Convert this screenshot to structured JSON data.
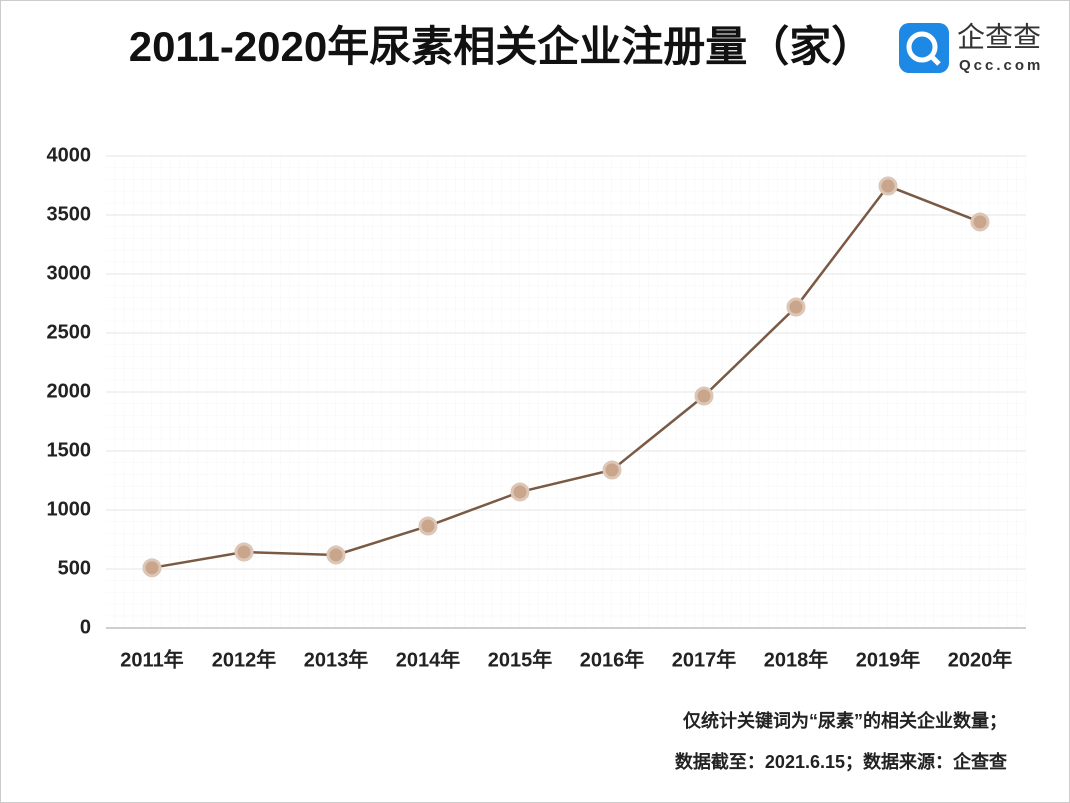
{
  "chart_data": {
    "type": "line",
    "title": "2011-2020年尿素相关企业注册量（家）",
    "categories": [
      "2011年",
      "2012年",
      "2013年",
      "2014年",
      "2015年",
      "2016年",
      "2017年",
      "2018年",
      "2019年",
      "2020年"
    ],
    "values": [
      510,
      644,
      619,
      864,
      1153,
      1339,
      1966,
      2720,
      3746,
      3441
    ],
    "color": "#7a5a44",
    "marker_color": "#c9a58c",
    "ylim": [
      0,
      4000
    ],
    "yticks": [
      0,
      500,
      1000,
      1500,
      2000,
      2500,
      3000,
      3500,
      4000
    ],
    "grid": true
  },
  "logo": {
    "name": "企查查",
    "domain": "Qcc.com"
  },
  "notes": [
    "仅统计关键词为“尿素”的相关企业数量；",
    "数据截至：2021.6.15；数据来源：企查查"
  ]
}
